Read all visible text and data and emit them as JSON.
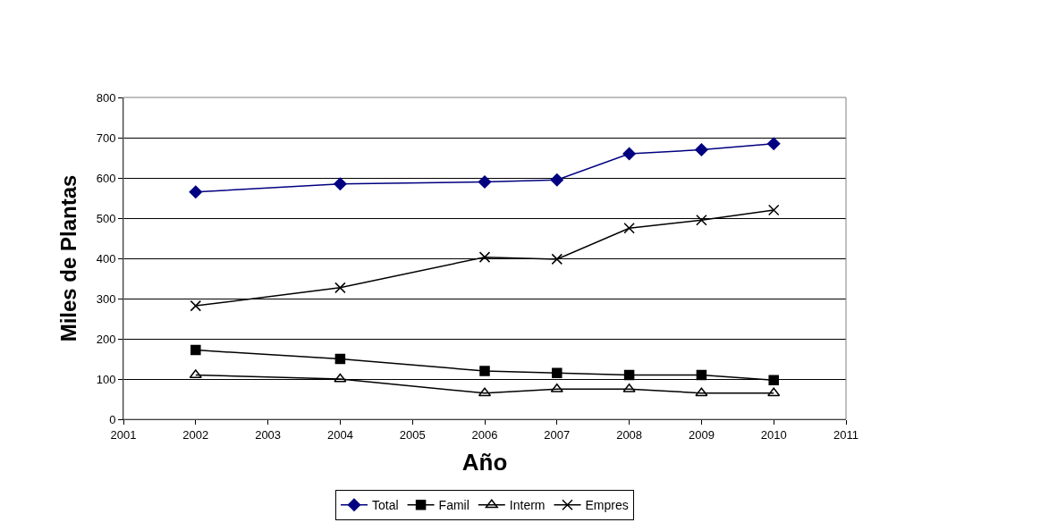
{
  "chart_data": {
    "type": "line",
    "xlabel": "Año",
    "ylabel": "Miles de Plantas",
    "x": [
      2002,
      2004,
      2006,
      2007,
      2008,
      2009,
      2010
    ],
    "series": [
      {
        "name": "Total",
        "color": "#000080",
        "marker": "diamond",
        "values": [
          565,
          585,
          590,
          595,
          660,
          670,
          685
        ]
      },
      {
        "name": "Famil",
        "color": "#000000",
        "marker": "square",
        "values": [
          172,
          150,
          120,
          115,
          110,
          110,
          97
        ]
      },
      {
        "name": "Interm",
        "color": "#000000",
        "marker": "triangle",
        "values": [
          110,
          100,
          65,
          75,
          75,
          65,
          65
        ]
      },
      {
        "name": "Empres",
        "color": "#000000",
        "marker": "cross",
        "values": [
          282,
          327,
          403,
          398,
          475,
          495,
          520
        ]
      }
    ],
    "xlim": [
      2001,
      2011
    ],
    "xticks": [
      2001,
      2002,
      2003,
      2004,
      2005,
      2006,
      2007,
      2008,
      2009,
      2010,
      2011
    ],
    "ylim": [
      0,
      800
    ],
    "yticks": [
      0,
      100,
      200,
      300,
      400,
      500,
      600,
      700,
      800
    ],
    "grid": "y",
    "legend": "bottom",
    "line_style": "solid"
  }
}
